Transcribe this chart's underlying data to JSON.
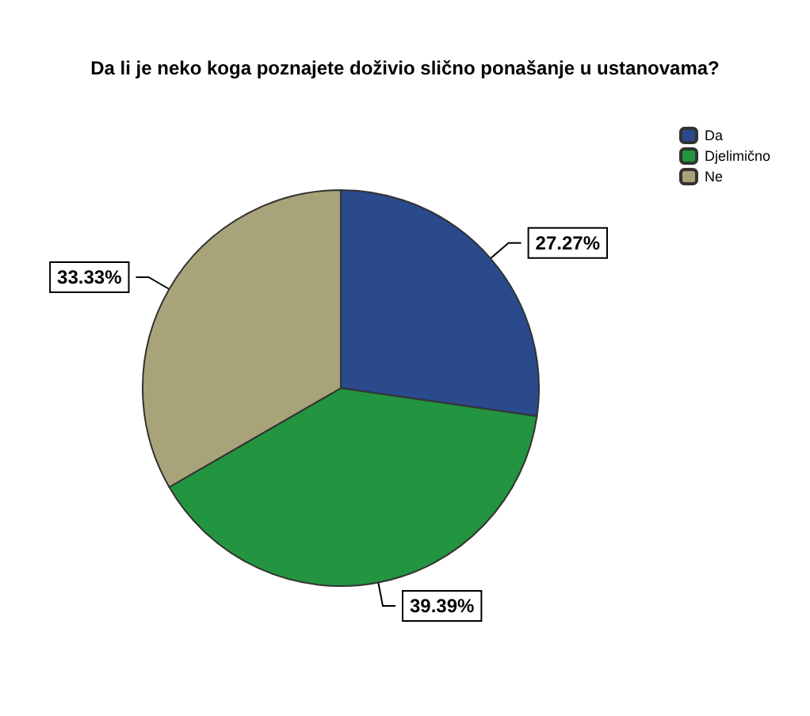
{
  "chart_data": {
    "type": "pie",
    "title": "Da li je neko koga poznajete doživio slično ponašanje u ustanovama?",
    "categories": [
      "Da",
      "Djelimično",
      "Ne"
    ],
    "values": [
      27.27,
      39.39,
      33.33
    ],
    "value_labels": [
      "27.27%",
      "39.39%",
      "33.33%"
    ],
    "colors": [
      "#2a4a8c",
      "#23943f",
      "#a9a37a"
    ],
    "legend": "top right"
  }
}
